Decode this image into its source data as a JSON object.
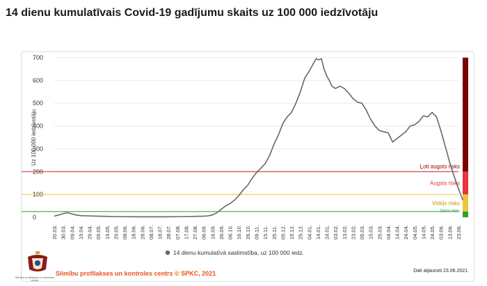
{
  "header": {
    "title": "14 dienu kumulatīvais Covid-19 gadījumu skaits uz 100 000 iedzīvotāju"
  },
  "footer": {
    "org": "Slimību profilakses un kontroles centrs © SPKC, 2021",
    "updated": "Dati atjaunoti 23.06.2021.",
    "logo_text": "Slimību profilakses un kontroles centrs"
  },
  "colors": {
    "line": "#666666",
    "very_high": "#7b0000",
    "high": "#e8343a",
    "medium": "#f0c33c",
    "low": "#2e9e2e",
    "grid": "#e8e8e8"
  },
  "chart_data": {
    "type": "line",
    "title": "14 dienu kumulatīvais Covid-19 gadījumu skaits uz 100 000 iedzīvotāju",
    "xlabel": "",
    "ylabel": "Uz 100 000 iedzīvotāju",
    "ylim": [
      0,
      700
    ],
    "yticks": [
      0,
      100,
      200,
      300,
      400,
      500,
      600,
      700
    ],
    "legend": "14 dienu kumulatīvā saslimstība, uz 100 000 iedz.",
    "x_ticks": [
      "20.03.",
      "30.03.",
      "09.04.",
      "19.04.",
      "29.04.",
      "09.05.",
      "19.05.",
      "29.05.",
      "08.06.",
      "18.06.",
      "28.06.",
      "08.07.",
      "18.07.",
      "28.07.",
      "07.08.",
      "17.08.",
      "27.08.",
      "06.09.",
      "16.09.",
      "26.09.",
      "06.10.",
      "16.10.",
      "26.10.",
      "05.11.",
      "15.11.",
      "25.11.",
      "05.12.",
      "15.12.",
      "25.12.",
      "04.01.",
      "14.01.",
      "24.01.",
      "03.02.",
      "13.02.",
      "23.02.",
      "05.03.",
      "15.03.",
      "25.03.",
      "04.04.",
      "14.04.",
      "24.04.",
      "04.05.",
      "14.05.",
      "24.05.",
      "03.06.",
      "13.06.",
      "23.06."
    ],
    "series": [
      {
        "name": "14 dienu kumulatīvā saslimstība, uz 100 000 iedz.",
        "points": [
          [
            0,
            5
          ],
          [
            0.5,
            10
          ],
          [
            1,
            16
          ],
          [
            1.5,
            20
          ],
          [
            2,
            15
          ],
          [
            2.5,
            10
          ],
          [
            3,
            7
          ],
          [
            4,
            6
          ],
          [
            5,
            5
          ],
          [
            6,
            4
          ],
          [
            7,
            3
          ],
          [
            8,
            3
          ],
          [
            9,
            2
          ],
          [
            10,
            2
          ],
          [
            11,
            2
          ],
          [
            12,
            2
          ],
          [
            13,
            2
          ],
          [
            14,
            3
          ],
          [
            15,
            3
          ],
          [
            16,
            4
          ],
          [
            17,
            5
          ],
          [
            17.5,
            6
          ],
          [
            18,
            10
          ],
          [
            18.5,
            20
          ],
          [
            19,
            35
          ],
          [
            19.5,
            50
          ],
          [
            20,
            60
          ],
          [
            20.5,
            75
          ],
          [
            21,
            95
          ],
          [
            21.5,
            120
          ],
          [
            22,
            140
          ],
          [
            22.5,
            170
          ],
          [
            23,
            195
          ],
          [
            23.5,
            215
          ],
          [
            24,
            235
          ],
          [
            24.5,
            270
          ],
          [
            25,
            320
          ],
          [
            25.5,
            360
          ],
          [
            26,
            410
          ],
          [
            26.5,
            440
          ],
          [
            27,
            460
          ],
          [
            27.5,
            500
          ],
          [
            28,
            550
          ],
          [
            28.5,
            610
          ],
          [
            29,
            640
          ],
          [
            29.5,
            675
          ],
          [
            29.8,
            695
          ],
          [
            30.1,
            690
          ],
          [
            30.4,
            695
          ],
          [
            30.7,
            650
          ],
          [
            31,
            620
          ],
          [
            31.3,
            600
          ],
          [
            31.6,
            575
          ],
          [
            32,
            565
          ],
          [
            32.5,
            575
          ],
          [
            33,
            565
          ],
          [
            33.5,
            545
          ],
          [
            34,
            520
          ],
          [
            34.5,
            505
          ],
          [
            35,
            500
          ],
          [
            35.5,
            470
          ],
          [
            36,
            430
          ],
          [
            36.5,
            400
          ],
          [
            37,
            380
          ],
          [
            37.5,
            375
          ],
          [
            38,
            370
          ],
          [
            38.5,
            330
          ],
          [
            39,
            345
          ],
          [
            39.5,
            360
          ],
          [
            40,
            375
          ],
          [
            40.5,
            400
          ],
          [
            41,
            405
          ],
          [
            41.5,
            420
          ],
          [
            42,
            445
          ],
          [
            42.5,
            440
          ],
          [
            43,
            460
          ],
          [
            43.5,
            440
          ],
          [
            44,
            380
          ],
          [
            44.5,
            310
          ],
          [
            45,
            240
          ],
          [
            45.5,
            180
          ],
          [
            46,
            125
          ],
          [
            46.5,
            75
          ]
        ]
      }
    ],
    "risk_levels": [
      {
        "label": "Ļoti augsts risks",
        "min": 200,
        "max": 700,
        "color": "#7b0000",
        "label_color": "#8b0000"
      },
      {
        "label": "Augsts risks",
        "min": 100,
        "max": 200,
        "color": "#e8343a",
        "label_color": "#e8343a"
      },
      {
        "label": "Vidējs risks",
        "min": 25,
        "max": 100,
        "color": "#f0c33c",
        "label_color": "#c99400"
      },
      {
        "label": "Zems risks",
        "min": 0,
        "max": 25,
        "color": "#2e9e2e",
        "label_color": "#2e9e2e"
      }
    ],
    "threshold_lines": [
      {
        "value": 200,
        "color": "#d22020"
      },
      {
        "value": 100,
        "color": "#f0c33c"
      },
      {
        "value": 25,
        "color": "#2e9e2e"
      }
    ]
  }
}
